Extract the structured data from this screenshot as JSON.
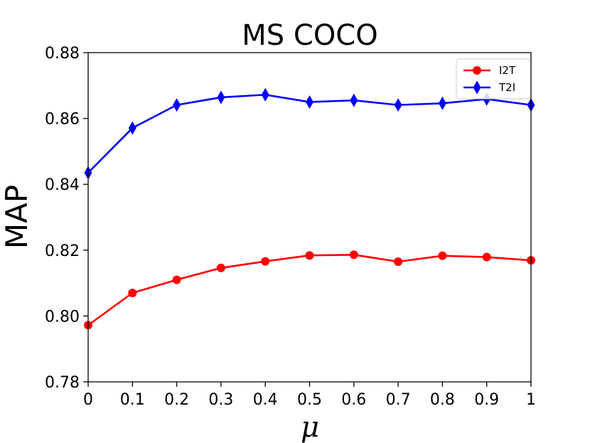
{
  "chart_data": {
    "type": "line",
    "title": "MS COCO",
    "xlabel": "μ",
    "ylabel": "MAP",
    "x": [
      0,
      0.1,
      0.2,
      0.3,
      0.4,
      0.5,
      0.6,
      0.7,
      0.8,
      0.9,
      1
    ],
    "x_tick_labels": [
      "0",
      "0.1",
      "0.2",
      "0.3",
      "0.4",
      "0.5",
      "0.6",
      "0.7",
      "0.8",
      "0.9",
      "1"
    ],
    "xlim": [
      0,
      1
    ],
    "y_ticks": [
      0.78,
      0.8,
      0.82,
      0.84,
      0.86,
      0.88
    ],
    "y_tick_labels": [
      "0.78",
      "0.80",
      "0.82",
      "0.84",
      "0.86",
      "0.88"
    ],
    "ylim": [
      0.78,
      0.88
    ],
    "grid": false,
    "legend_position": "top-right",
    "series": [
      {
        "name": "I2T",
        "color": "#ff0000",
        "marker": "circle",
        "values": [
          0.7972,
          0.807,
          0.811,
          0.8146,
          0.8166,
          0.8184,
          0.8186,
          0.8165,
          0.8183,
          0.8179,
          0.8169
        ]
      },
      {
        "name": "T2I",
        "color": "#0000ff",
        "marker": "thin-diamond",
        "values": [
          0.8435,
          0.8571,
          0.8641,
          0.8664,
          0.8672,
          0.865,
          0.8655,
          0.8641,
          0.8646,
          0.8659,
          0.8641
        ]
      }
    ]
  }
}
